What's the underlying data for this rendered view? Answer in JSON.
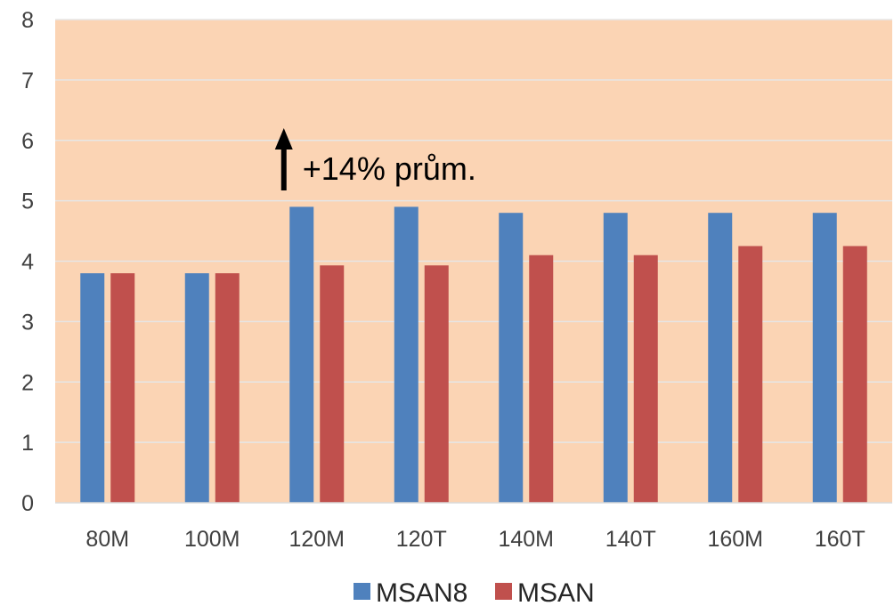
{
  "chart_data": {
    "type": "bar",
    "categories": [
      "80M",
      "100M",
      "120M",
      "120T",
      "140M",
      "140T",
      "160M",
      "160T"
    ],
    "series": [
      {
        "name": "MSAN8",
        "values": [
          3.8,
          3.8,
          4.9,
          4.9,
          4.8,
          4.8,
          4.8,
          4.8
        ],
        "color": "#4F81BD"
      },
      {
        "name": "MSAN",
        "values": [
          3.8,
          3.8,
          3.93,
          3.93,
          4.1,
          4.1,
          4.25,
          4.25
        ],
        "color": "#C0504D"
      }
    ],
    "ylim": [
      0,
      8
    ],
    "yticks": [
      0,
      1,
      2,
      3,
      4,
      5,
      6,
      7,
      8
    ],
    "grid": true,
    "plot_background": "#FBD4B4",
    "legend": "bottom",
    "annotation": {
      "text": "+14% prům.",
      "arrow": "up-arrow-icon",
      "near_category": "120M"
    }
  }
}
